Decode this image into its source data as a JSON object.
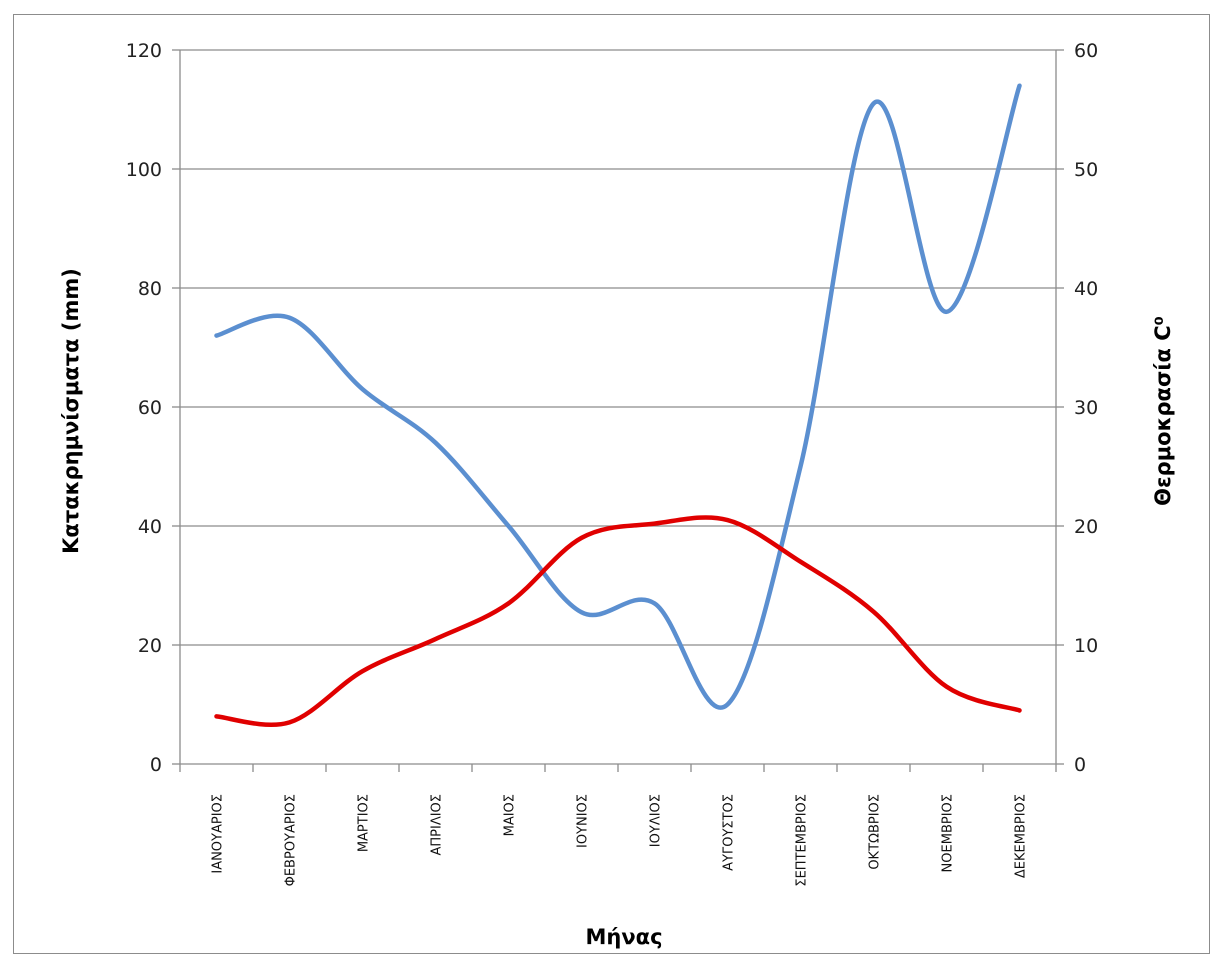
{
  "chart_data": {
    "type": "line",
    "title": "",
    "xlabel": "Μήνας",
    "ylabel": "Κατακρημνίσματα  (mm)",
    "y2label": "Θερμοκρασία  C⁰",
    "ylim": [
      0,
      120
    ],
    "y2lim": [
      0,
      60
    ],
    "y_ticks": [
      "0",
      "20",
      "40",
      "60",
      "80",
      "100",
      "120"
    ],
    "y2_ticks": [
      "0",
      "10",
      "20",
      "30",
      "40",
      "50",
      "60"
    ],
    "grid": true,
    "legend": "none",
    "categories": [
      "ΙΑΝΟΥΑΡΙΟΣ",
      "ΦΕΒΡΟΥΑΡΙΟΣ",
      "ΜΑΡΤΙΟΣ",
      "ΑΠΡΙΛΙΟΣ",
      "ΜΑΙΟΣ",
      "ΙΟΥΝΙΟΣ",
      "ΙΟΥΛΙΟΣ",
      "ΑΥΓΟΥΣΤΟΣ",
      "ΣΕΠΤΕΜΒΡΙΟΣ",
      "ΟΚΤΩΒΡΙΟΣ",
      "ΝΟΕΜΒΡΙΟΣ",
      "ΔΕΚΕΜΒΡΙΟΣ"
    ],
    "series": [
      {
        "axis": "left",
        "color": "#5b8fd0",
        "values": [
          72,
          75,
          63,
          54,
          40,
          25.5,
          27,
          10,
          50,
          111,
          76,
          114
        ]
      },
      {
        "axis": "right",
        "color": "#e00000",
        "values": [
          4,
          3.5,
          7.8,
          10.5,
          13.5,
          19,
          20.2,
          20.5,
          17,
          12.8,
          6.5,
          4.5
        ]
      }
    ]
  },
  "colors": {
    "grid": "#8c8c8c",
    "axis": "#8c8c8c"
  }
}
